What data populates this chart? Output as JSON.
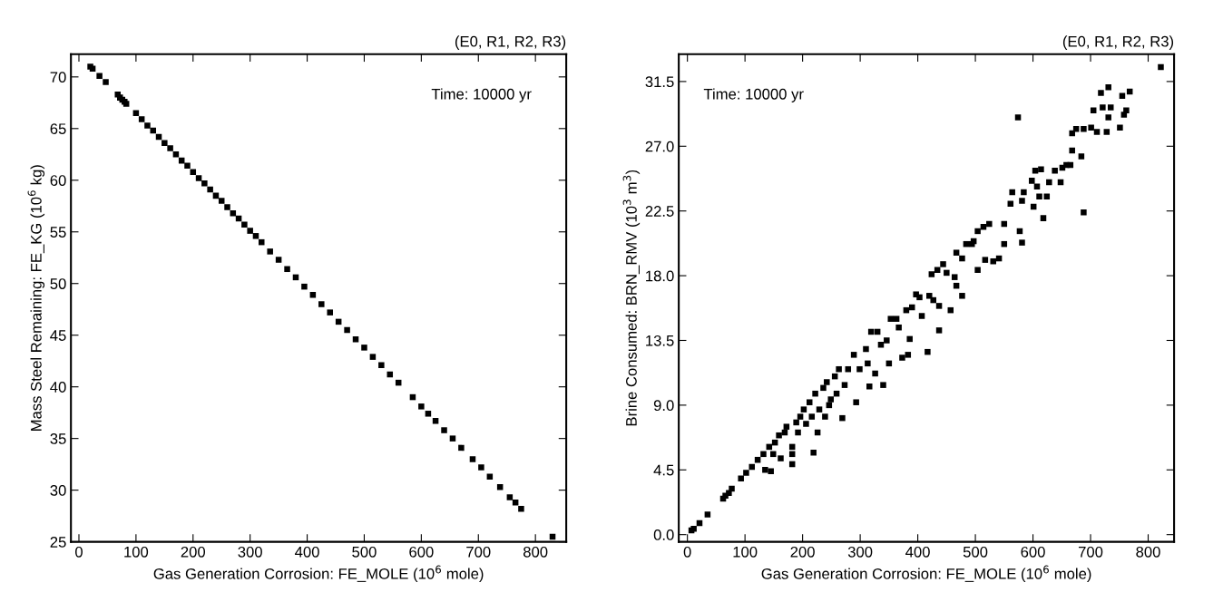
{
  "chart_data": [
    {
      "type": "scatter",
      "title": "(E0, R1, R2, R3)",
      "xlabel": "Gas Generation Corrosion: FE_MOLE (10$^{6}$ mole)",
      "ylabel": "Mass Steel Remaining: FE_KG (10$^{6}$ kg)",
      "annotations": [
        "Time: 10000 yr"
      ],
      "xlim": [
        -14,
        854
      ],
      "ylim": [
        25,
        72.2
      ],
      "xticks": [
        0,
        100,
        200,
        300,
        400,
        500,
        600,
        700,
        800
      ],
      "yticks": [
        25,
        30,
        35,
        40,
        45,
        50,
        55,
        60,
        65,
        70
      ],
      "marker": "square",
      "grid": false,
      "legend": false,
      "series": [
        {
          "color": "#000000",
          "x": [
            20,
            24,
            36,
            47,
            68,
            72,
            76,
            80,
            83,
            100,
            110,
            120,
            130,
            140,
            150,
            160,
            170,
            180,
            190,
            200,
            210,
            220,
            230,
            240,
            250,
            260,
            270,
            280,
            290,
            300,
            310,
            320,
            335,
            350,
            365,
            380,
            395,
            410,
            425,
            440,
            455,
            470,
            485,
            500,
            515,
            530,
            545,
            560,
            585,
            600,
            612,
            625,
            640,
            655,
            670,
            690,
            705,
            720,
            738,
            755,
            765,
            775,
            830
          ],
          "values": [
            71.0,
            70.8,
            70.1,
            69.5,
            68.3,
            68.0,
            67.8,
            67.6,
            67.4,
            66.5,
            65.9,
            65.3,
            64.8,
            64.2,
            63.6,
            63.1,
            62.5,
            61.9,
            61.4,
            60.8,
            60.2,
            59.7,
            59.1,
            58.5,
            58.0,
            57.4,
            56.8,
            56.3,
            55.7,
            55.1,
            54.6,
            54.0,
            53.1,
            52.3,
            51.4,
            50.6,
            49.7,
            48.9,
            48.0,
            47.2,
            46.3,
            45.5,
            44.6,
            43.8,
            42.9,
            42.1,
            41.2,
            40.4,
            39.0,
            38.1,
            37.4,
            36.7,
            35.8,
            35.0,
            34.1,
            33.0,
            32.2,
            31.3,
            30.3,
            29.3,
            28.8,
            28.2,
            25.5
          ]
        }
      ]
    },
    {
      "type": "scatter",
      "title": "(E0, R1, R2, R3)",
      "xlabel": "Gas Generation Corrosion: FE_MOLE (10$^{6}$ mole)",
      "ylabel": "Brine Consumed: BRN_RMV (10$^{3}$ m$^{3}$)",
      "annotations": [
        "Time: 10000 yr"
      ],
      "xlim": [
        -15,
        845
      ],
      "ylim": [
        -0.5,
        33.4
      ],
      "xticks": [
        0,
        100,
        200,
        300,
        400,
        500,
        600,
        700,
        800
      ],
      "yticks": [
        {
          "value": 0,
          "label": "0.0"
        },
        4.5,
        {
          "value": 9,
          "label": "9.0"
        },
        13.5,
        {
          "value": 18,
          "label": "18.0"
        },
        22.5,
        {
          "value": 27,
          "label": "27.0"
        },
        31.5
      ],
      "marker": "square",
      "grid": false,
      "legend": false,
      "series": [
        {
          "color": "#000000",
          "x": [
            7,
            11,
            21,
            35,
            62,
            66,
            72,
            77,
            93,
            102,
            112,
            122,
            132,
            135,
            145,
            142,
            149,
            152,
            159,
            162,
            169,
            172,
            182,
            182,
            182,
            189,
            192,
            196,
            202,
            206,
            212,
            216,
            219,
            222,
            226,
            229,
            236,
            239,
            242,
            246,
            249,
            256,
            259,
            263,
            269,
            273,
            279,
            289,
            293,
            299,
            310,
            313,
            316,
            319,
            326,
            330,
            336,
            340,
            346,
            350,
            353,
            363,
            367,
            373,
            380,
            383,
            386,
            390,
            397,
            403,
            407,
            417,
            420,
            424,
            427,
            434,
            437,
            437,
            444,
            450,
            457,
            464,
            467,
            467,
            477,
            477,
            484,
            494,
            497,
            504,
            504,
            514,
            517,
            524,
            531,
            541,
            550,
            550,
            561,
            564,
            574,
            577,
            581,
            581,
            584,
            598,
            601,
            604,
            607,
            611,
            614,
            618,
            624,
            628,
            638,
            648,
            651,
            658,
            665,
            668,
            668,
            675,
            684,
            688,
            688,
            701,
            705,
            711,
            718,
            721,
            728,
            731,
            731,
            735,
            751,
            755,
            758,
            762,
            768,
            822
          ],
          "values": [
            0.3,
            0.4,
            0.8,
            1.4,
            2.5,
            2.7,
            2.9,
            3.2,
            3.9,
            4.3,
            4.7,
            5.2,
            5.6,
            4.5,
            4.4,
            6.1,
            5.6,
            6.4,
            6.9,
            5.3,
            7.1,
            7.5,
            4.9,
            5.6,
            6.1,
            7.8,
            7.1,
            8.2,
            8.7,
            7.7,
            9.2,
            8.2,
            5.7,
            9.8,
            7.1,
            8.7,
            10.2,
            8.2,
            10.6,
            9.0,
            9.4,
            11.0,
            9.8,
            11.5,
            8.1,
            10.4,
            11.5,
            12.5,
            9.2,
            11.5,
            12.9,
            11.9,
            10.3,
            14.1,
            11.2,
            14.1,
            13.2,
            10.4,
            13.5,
            11.9,
            15.0,
            15.0,
            14.4,
            12.3,
            15.6,
            12.5,
            13.6,
            15.8,
            16.7,
            16.5,
            15.2,
            12.7,
            16.6,
            18.1,
            16.3,
            18.4,
            15.9,
            14.2,
            18.8,
            18.2,
            15.6,
            17.9,
            17.3,
            19.6,
            16.6,
            19.2,
            20.2,
            20.2,
            20.4,
            21.1,
            18.4,
            21.4,
            19.1,
            21.6,
            19.0,
            19.2,
            21.6,
            20.2,
            23.0,
            23.8,
            29.0,
            21.1,
            23.2,
            20.3,
            23.8,
            24.6,
            22.8,
            25.3,
            24.2,
            23.5,
            25.4,
            22.0,
            23.5,
            24.5,
            25.3,
            24.5,
            25.5,
            25.7,
            25.7,
            26.7,
            27.9,
            28.2,
            26.3,
            22.4,
            28.2,
            28.3,
            29.5,
            28.0,
            30.7,
            29.7,
            28.0,
            31.1,
            29.0,
            29.7,
            28.3,
            30.5,
            29.2,
            29.5,
            30.8,
            32.5
          ]
        }
      ]
    }
  ]
}
